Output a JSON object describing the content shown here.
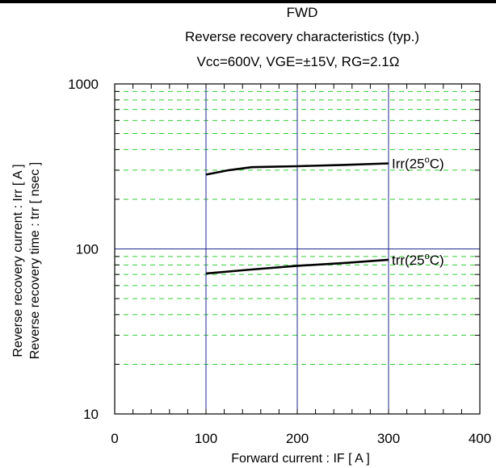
{
  "chart_data": {
    "type": "line",
    "title_lines": [
      "FWD",
      "Reverse recovery characteristics (typ.)",
      "Vcc=600V, VGE=±15V, RG=2.1Ω"
    ],
    "xlabel": "Forward current : IF [ A ]",
    "ylabel_lines": [
      "Reverse recovery current : Irr [ A ]",
      "Reverse recovery time : trr [ nsec ]"
    ],
    "xlim": [
      0,
      400
    ],
    "ylim": [
      10,
      1000
    ],
    "y_scale": "log",
    "x_ticks": [
      0,
      100,
      200,
      300,
      400
    ],
    "x_tick_labels": [
      "0",
      "100",
      "200",
      "300",
      "400"
    ],
    "y_ticks": [
      10,
      100,
      1000
    ],
    "y_tick_labels": [
      "10",
      "100",
      "1000"
    ],
    "grid": true,
    "colors": {
      "major_grid": "#1f2a8c",
      "minor_grid": "#33cc33",
      "series": "#000000",
      "frame": "#000000"
    },
    "series": [
      {
        "name": "Irr(25°C)",
        "x": [
          100,
          125,
          150,
          175,
          200,
          250,
          300
        ],
        "y": [
          282,
          300,
          313,
          315,
          317,
          323,
          330
        ]
      },
      {
        "name": "trr(25°C)",
        "x": [
          100,
          150,
          200,
          250,
          300
        ],
        "y": [
          71,
          75,
          79,
          82,
          86
        ]
      }
    ]
  }
}
